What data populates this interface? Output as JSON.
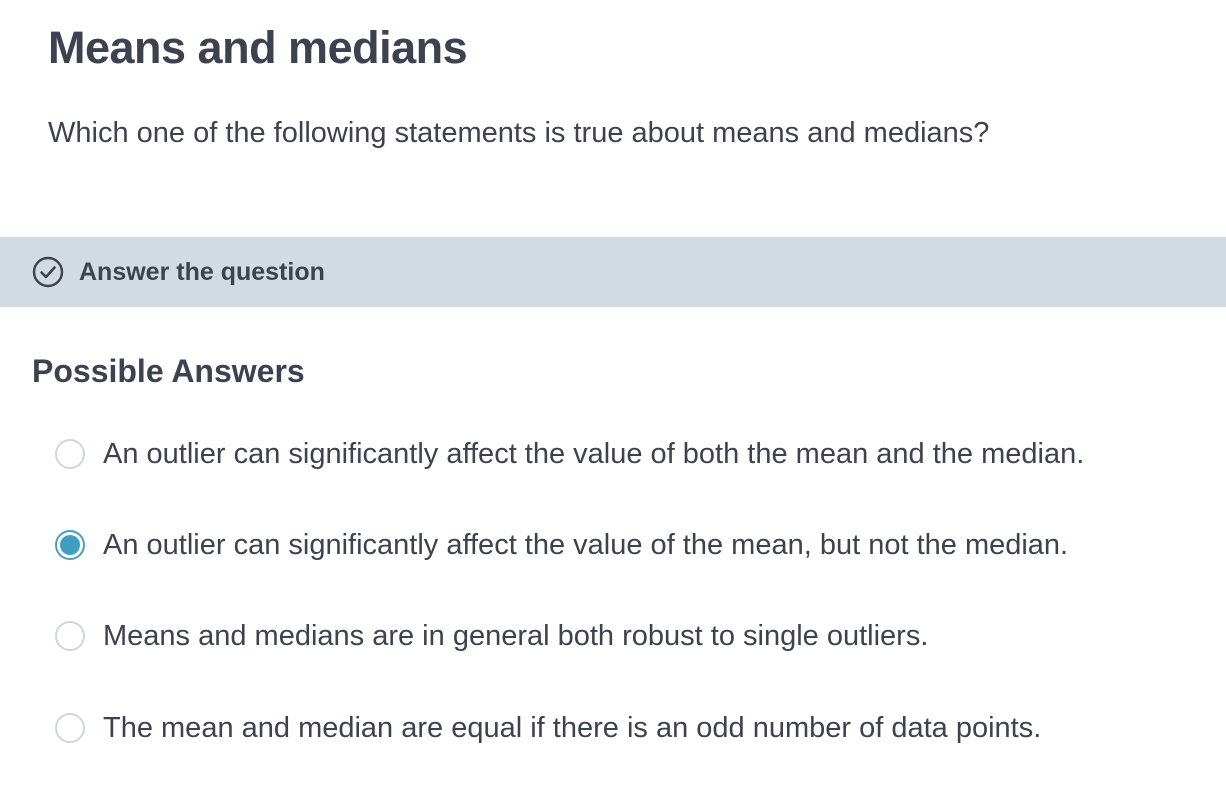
{
  "exercise": {
    "title": "Means and medians",
    "question": "Which one of the following statements is true about means and medians?"
  },
  "banner": {
    "icon": "check-circle-icon",
    "label": "Answer the question"
  },
  "answers": {
    "heading": "Possible Answers",
    "options": [
      {
        "label": "An outlier can significantly affect the value of both the mean and the median.",
        "selected": false
      },
      {
        "label": "An outlier can significantly affect the value of the mean, but not the median.",
        "selected": true
      },
      {
        "label": "Means and medians are in general both robust to single outliers.",
        "selected": false
      },
      {
        "label": "The mean and median are equal if there is an odd number of data points.",
        "selected": false
      }
    ]
  },
  "colors": {
    "text": "#3d4251",
    "banner_bg": "#d3dbe2",
    "radio_selected": "#3f9ec4",
    "radio_border": "#d0d6dc"
  }
}
